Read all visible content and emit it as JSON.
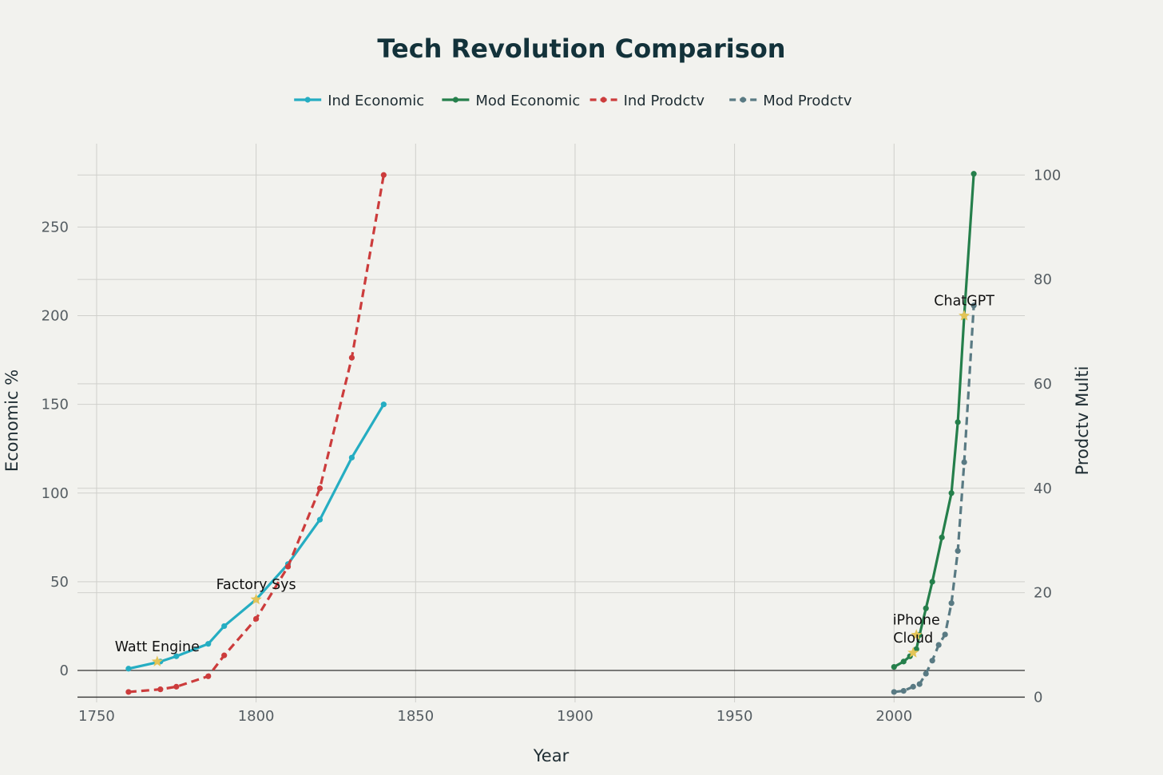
{
  "chart_data": {
    "type": "line",
    "title": "Tech Revolution Comparison",
    "xlabel": "Year",
    "ylabel": "Economic %",
    "y2label": "Prodctv Multi",
    "xlim": [
      1744,
      2041
    ],
    "ylim": [
      -18,
      297
    ],
    "y2lim": [
      -1,
      106
    ],
    "xticks": [
      1750,
      1800,
      1850,
      1900,
      1950,
      2000
    ],
    "yticks": [
      0,
      50,
      100,
      150,
      200,
      250
    ],
    "y2ticks": [
      0,
      20,
      40,
      60,
      80,
      100
    ],
    "grid": true,
    "legend": "top-center",
    "series": [
      {
        "name": "Ind Economic",
        "axis": "left",
        "color": "#25adc2",
        "dash": false,
        "x": [
          1760,
          1770,
          1775,
          1785,
          1790,
          1800,
          1810,
          1820,
          1830,
          1840
        ],
        "y": [
          1,
          5,
          8,
          15,
          25,
          40,
          60,
          85,
          120,
          150
        ]
      },
      {
        "name": "Mod Economic",
        "axis": "left",
        "color": "#257f4b",
        "dash": false,
        "x": [
          2000,
          2003,
          2005,
          2007,
          2008,
          2010,
          2012,
          2015,
          2018,
          2020,
          2022,
          2025
        ],
        "y": [
          2,
          5,
          8,
          12,
          20,
          35,
          50,
          75,
          100,
          140,
          200,
          280
        ]
      },
      {
        "name": "Ind Prodctv",
        "axis": "right",
        "color": "#cc3c3c",
        "dash": true,
        "x": [
          1760,
          1770,
          1775,
          1785,
          1790,
          1800,
          1810,
          1820,
          1830,
          1840
        ],
        "y": [
          1,
          1.5,
          2,
          4,
          8,
          15,
          25,
          40,
          65,
          100
        ]
      },
      {
        "name": "Mod Prodctv",
        "axis": "right",
        "color": "#597a83",
        "dash": true,
        "x": [
          2000,
          2003,
          2006,
          2008,
          2010,
          2012,
          2014,
          2016,
          2018,
          2020,
          2022,
          2025
        ],
        "y": [
          1,
          1.2,
          2,
          2.5,
          4.5,
          7,
          10,
          12,
          18,
          28,
          45,
          75
        ]
      }
    ],
    "annotations": [
      {
        "text": "Watt Engine",
        "x": 1769,
        "y": 5
      },
      {
        "text": "Factory Sys",
        "x": 1800,
        "y": 40
      },
      {
        "text": "iPhone",
        "x": 2007,
        "y": 20
      },
      {
        "text": "Cloud",
        "x": 2006,
        "y": 10
      },
      {
        "text": "ChatGPT",
        "x": 2022,
        "y": 200
      }
    ],
    "marker_color": "#e3c457"
  }
}
